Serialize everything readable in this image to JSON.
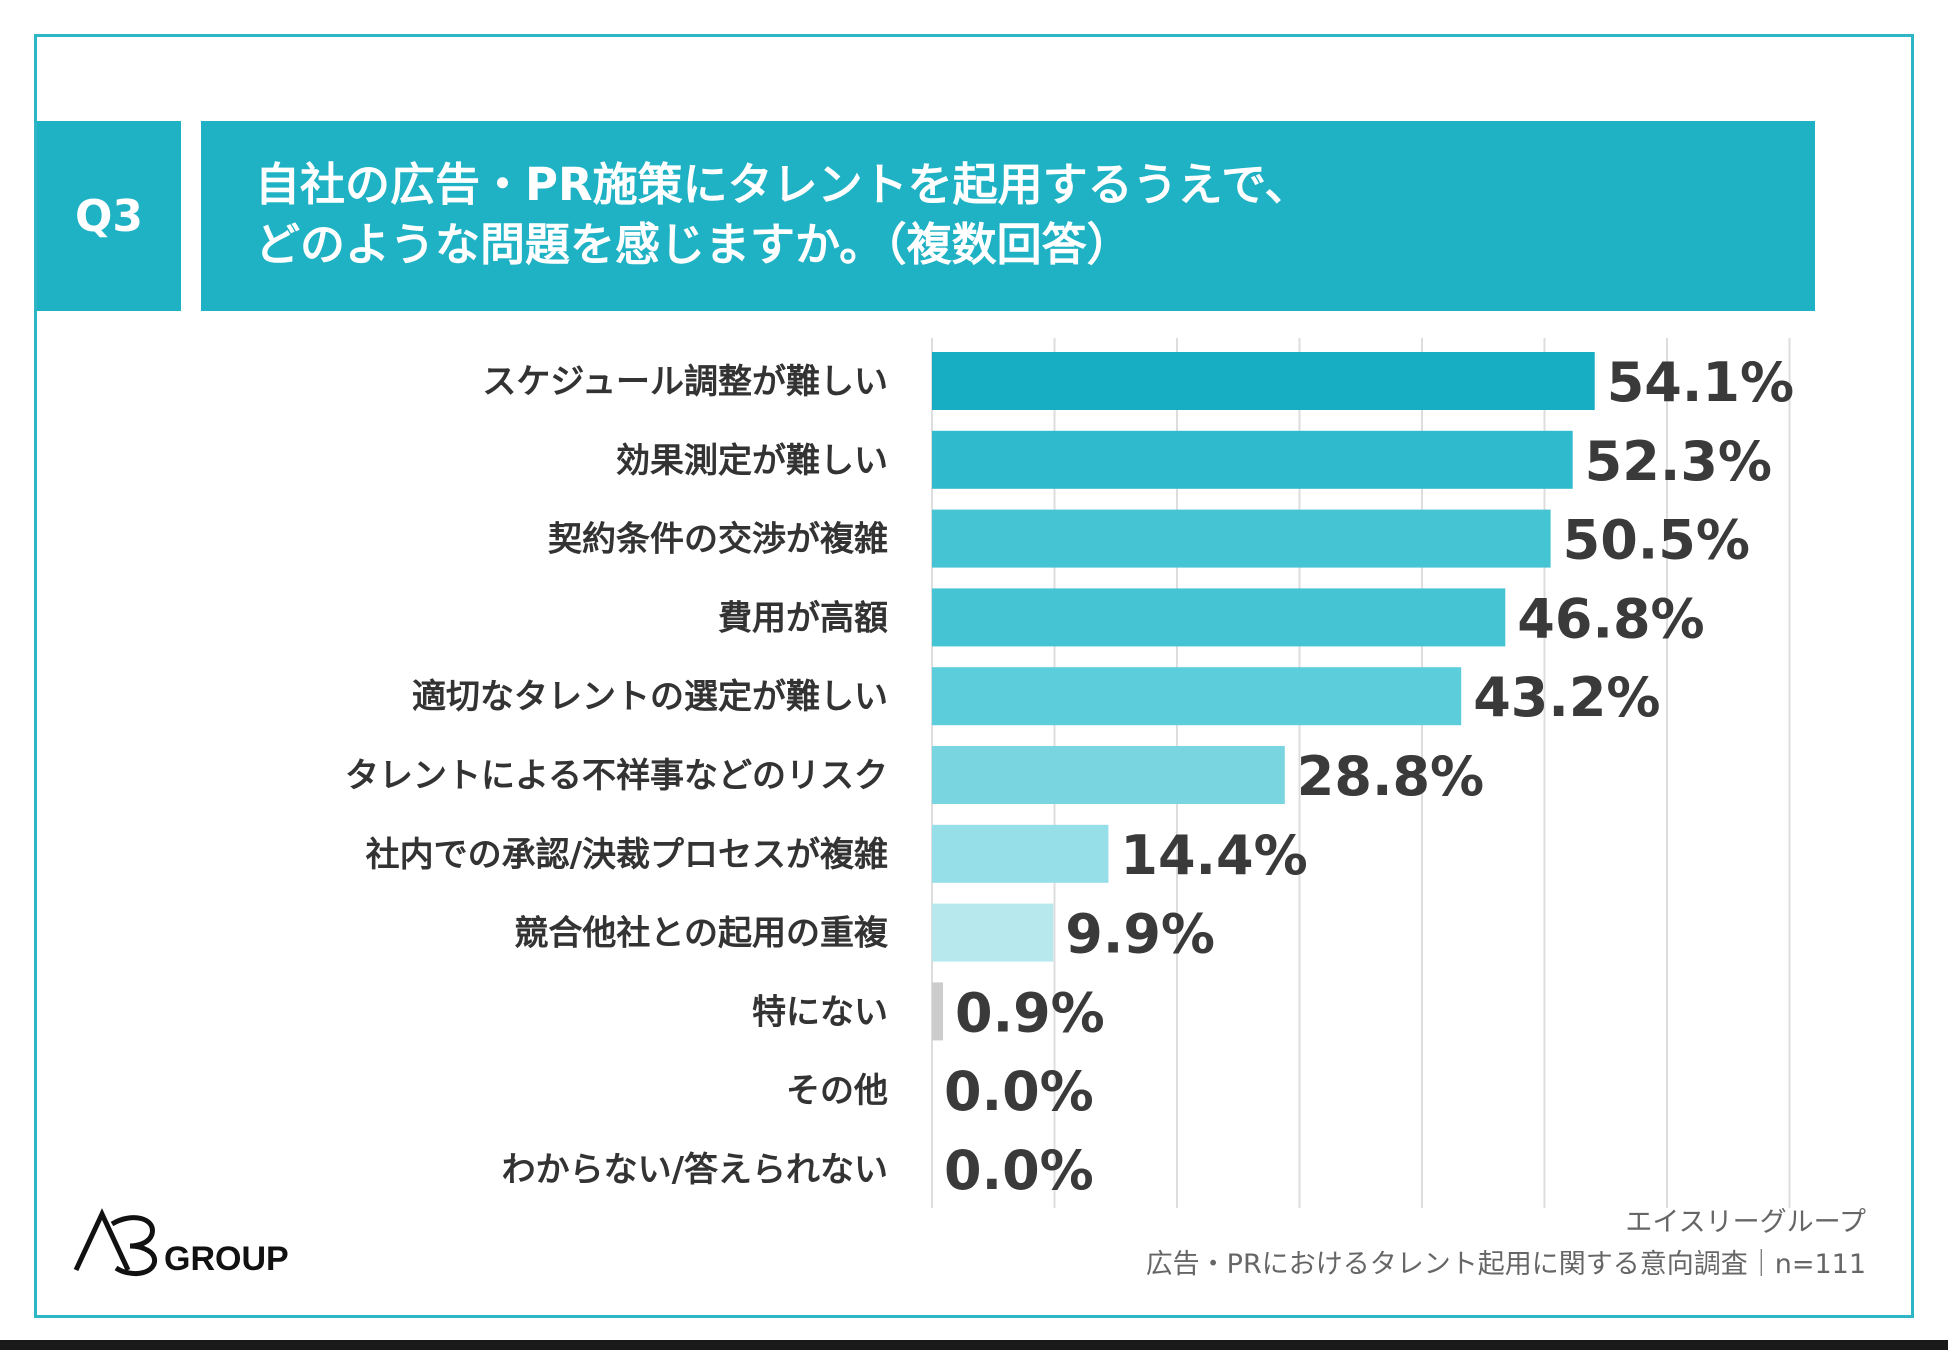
{
  "header": {
    "question_no": "Q3",
    "title_line1": "自社の広告・PR施策にタレントを起用するうえで、",
    "title_line2": "どのような問題を感じますか。（複数回答）"
  },
  "chart_data": {
    "type": "bar",
    "orientation": "horizontal",
    "title": "自社の広告・PR施策にタレントを起用するうえで、どのような問題を感じますか。（複数回答）",
    "categories": [
      "スケジュール調整が難しい",
      "効果測定が難しい",
      "契約条件の交渉が複雑",
      "費用が高額",
      "適切なタレントの選定が難しい",
      "タレントによる不祥事などのリスク",
      "社内での承認/決裁プロセスが複雑",
      "競合他社との起用の重複",
      "特にない",
      "その他",
      "わからない/答えられない"
    ],
    "values": [
      54.1,
      52.3,
      50.5,
      46.8,
      43.2,
      28.8,
      14.4,
      9.9,
      0.9,
      0.0,
      0.0
    ],
    "value_labels": [
      "54.1%",
      "52.3%",
      "50.5%",
      "46.8%",
      "43.2%",
      "28.8%",
      "14.4%",
      "9.9%",
      "0.9%",
      "0.0%",
      "0.0%"
    ],
    "colors": [
      "#17aec3",
      "#2fbbcd",
      "#45c4d4",
      "#45c4d4",
      "#5ccdda",
      "#79d5e0",
      "#96dfe8",
      "#b7e8ee",
      "#cccccc",
      "#cccccc",
      "#cccccc"
    ],
    "xlim": [
      0,
      70
    ],
    "gridlines": [
      0,
      10,
      20,
      30,
      40,
      50,
      60,
      70
    ],
    "grid": true,
    "unit": "%",
    "xlabel": "",
    "ylabel": ""
  },
  "logo": {
    "mark": "A3",
    "text": "GROUP"
  },
  "footer": {
    "company": "エイスリーグループ",
    "survey": "広告・PRにおけるタレント起用に関する意向調査｜n=111"
  },
  "colors": {
    "accent": "#1fb1c4",
    "frame": "#2db5c6"
  }
}
